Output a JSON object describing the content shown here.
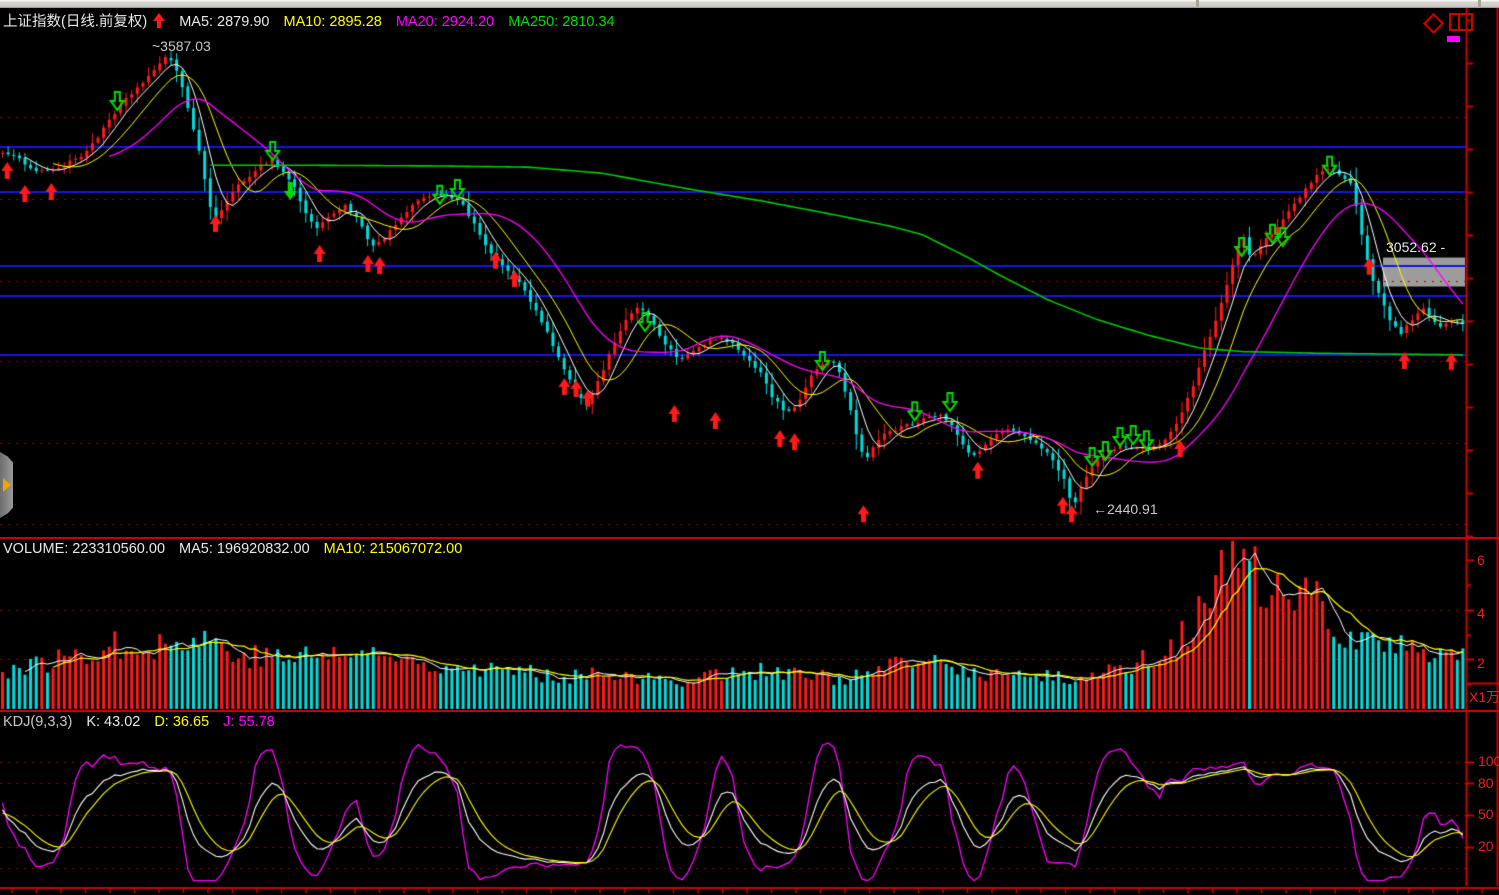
{
  "main": {
    "title": "上证指数(日线.前复权)",
    "ma5": "MA5: 2879.90",
    "ma10": "MA10: 2895.28",
    "ma20": "MA20: 2924.20",
    "ma250": "MA250: 2810.34",
    "high_label": "~3587.03",
    "low_label": "←2440.91",
    "price_tag": "3052.62 -"
  },
  "volume": {
    "volume": "VOLUME: 223310560.00",
    "ma5": "MA5: 196920832.00",
    "ma10": "MA10: 215067072.00",
    "axis": {
      "a6": "6",
      "a4": "4",
      "a2": "2"
    },
    "unit": "X1万"
  },
  "kdj": {
    "title": "KDJ(9,3,3)",
    "k": "K: 43.02",
    "d": "D: 36.65",
    "j": "J: 55.78",
    "axis": {
      "a100": "100",
      "a80": "80",
      "a50": "50",
      "a20": "20"
    }
  },
  "chart_data": {
    "type": "candlestick+volume+kdj",
    "n_candles": 261,
    "price_axis": {
      "min": 2380,
      "max": 3650
    },
    "support_lines": [
      3351,
      3237,
      3052.62,
      2976,
      2827
    ],
    "grid_lines": [
      3426,
      3220,
      3014,
      2812,
      2606,
      2402
    ],
    "price_tag_value": 3052.62,
    "close_anchors": [
      [
        0.0,
        3340
      ],
      [
        0.012,
        3315
      ],
      [
        0.026,
        3290
      ],
      [
        0.04,
        3300
      ],
      [
        0.055,
        3330
      ],
      [
        0.07,
        3400
      ],
      [
        0.085,
        3470
      ],
      [
        0.1,
        3530
      ],
      [
        0.113,
        3575
      ],
      [
        0.118,
        3560
      ],
      [
        0.125,
        3480
      ],
      [
        0.135,
        3330
      ],
      [
        0.144,
        3170
      ],
      [
        0.152,
        3200
      ],
      [
        0.163,
        3260
      ],
      [
        0.175,
        3300
      ],
      [
        0.184,
        3320
      ],
      [
        0.192,
        3290
      ],
      [
        0.2,
        3250
      ],
      [
        0.208,
        3180
      ],
      [
        0.216,
        3145
      ],
      [
        0.226,
        3185
      ],
      [
        0.235,
        3205
      ],
      [
        0.244,
        3165
      ],
      [
        0.252,
        3100
      ],
      [
        0.26,
        3110
      ],
      [
        0.27,
        3160
      ],
      [
        0.281,
        3200
      ],
      [
        0.292,
        3230
      ],
      [
        0.303,
        3235
      ],
      [
        0.313,
        3215
      ],
      [
        0.322,
        3160
      ],
      [
        0.332,
        3100
      ],
      [
        0.342,
        3050
      ],
      [
        0.352,
        3020
      ],
      [
        0.362,
        2960
      ],
      [
        0.372,
        2890
      ],
      [
        0.383,
        2800
      ],
      [
        0.393,
        2730
      ],
      [
        0.4,
        2700
      ],
      [
        0.408,
        2760
      ],
      [
        0.418,
        2850
      ],
      [
        0.428,
        2930
      ],
      [
        0.437,
        2950
      ],
      [
        0.446,
        2905
      ],
      [
        0.455,
        2850
      ],
      [
        0.463,
        2815
      ],
      [
        0.472,
        2835
      ],
      [
        0.482,
        2860
      ],
      [
        0.492,
        2870
      ],
      [
        0.501,
        2850
      ],
      [
        0.51,
        2820
      ],
      [
        0.519,
        2785
      ],
      [
        0.527,
        2725
      ],
      [
        0.536,
        2685
      ],
      [
        0.545,
        2705
      ],
      [
        0.553,
        2765
      ],
      [
        0.56,
        2805
      ],
      [
        0.567,
        2820
      ],
      [
        0.574,
        2780
      ],
      [
        0.58,
        2700
      ],
      [
        0.586,
        2610
      ],
      [
        0.591,
        2565
      ],
      [
        0.598,
        2605
      ],
      [
        0.606,
        2635
      ],
      [
        0.615,
        2645
      ],
      [
        0.624,
        2655
      ],
      [
        0.632,
        2675
      ],
      [
        0.641,
        2680
      ],
      [
        0.65,
        2650
      ],
      [
        0.657,
        2605
      ],
      [
        0.663,
        2570
      ],
      [
        0.671,
        2595
      ],
      [
        0.681,
        2625
      ],
      [
        0.691,
        2640
      ],
      [
        0.701,
        2625
      ],
      [
        0.711,
        2600
      ],
      [
        0.72,
        2560
      ],
      [
        0.728,
        2505
      ],
      [
        0.733,
        2445
      ],
      [
        0.74,
        2505
      ],
      [
        0.749,
        2560
      ],
      [
        0.758,
        2590
      ],
      [
        0.766,
        2600
      ],
      [
        0.774,
        2585
      ],
      [
        0.782,
        2592
      ],
      [
        0.791,
        2605
      ],
      [
        0.799,
        2625
      ],
      [
        0.807,
        2680
      ],
      [
        0.816,
        2760
      ],
      [
        0.825,
        2855
      ],
      [
        0.834,
        2955
      ],
      [
        0.843,
        3060
      ],
      [
        0.849,
        3130
      ],
      [
        0.855,
        3070
      ],
      [
        0.862,
        3100
      ],
      [
        0.871,
        3140
      ],
      [
        0.88,
        3185
      ],
      [
        0.89,
        3235
      ],
      [
        0.9,
        3275
      ],
      [
        0.908,
        3300
      ],
      [
        0.916,
        3280
      ],
      [
        0.924,
        3250
      ],
      [
        0.931,
        3120
      ],
      [
        0.938,
        3020
      ],
      [
        0.945,
        2960
      ],
      [
        0.951,
        2905
      ],
      [
        0.958,
        2880
      ],
      [
        0.965,
        2915
      ],
      [
        0.972,
        2945
      ],
      [
        0.979,
        2920
      ],
      [
        0.986,
        2900
      ],
      [
        0.993,
        2915
      ],
      [
        1.0,
        2905
      ]
    ],
    "ma250_anchors": [
      [
        0.138,
        3305
      ],
      [
        0.2,
        3305
      ],
      [
        0.3,
        3303
      ],
      [
        0.36,
        3300
      ],
      [
        0.41,
        3285
      ],
      [
        0.47,
        3245
      ],
      [
        0.52,
        3215
      ],
      [
        0.57,
        3180
      ],
      [
        0.61,
        3150
      ],
      [
        0.63,
        3130
      ],
      [
        0.66,
        3075
      ],
      [
        0.682,
        3030
      ],
      [
        0.716,
        2966
      ],
      [
        0.75,
        2916
      ],
      [
        0.784,
        2878
      ],
      [
        0.82,
        2845
      ],
      [
        0.85,
        2836
      ],
      [
        0.9,
        2832
      ],
      [
        0.95,
        2830
      ],
      [
        1.0,
        2828
      ]
    ],
    "volume_anchors": [
      [
        0.0,
        1.5
      ],
      [
        0.03,
        1.8
      ],
      [
        0.06,
        2.3
      ],
      [
        0.09,
        2.6
      ],
      [
        0.12,
        2.5
      ],
      [
        0.14,
        2.8
      ],
      [
        0.16,
        2.2
      ],
      [
        0.18,
        2.0
      ],
      [
        0.21,
        2.1
      ],
      [
        0.24,
        2.2
      ],
      [
        0.27,
        2.0
      ],
      [
        0.3,
        1.8
      ],
      [
        0.33,
        1.6
      ],
      [
        0.36,
        1.4
      ],
      [
        0.39,
        1.3
      ],
      [
        0.41,
        1.6
      ],
      [
        0.43,
        1.2
      ],
      [
        0.46,
        1.1
      ],
      [
        0.49,
        1.4
      ],
      [
        0.52,
        1.5
      ],
      [
        0.55,
        1.3
      ],
      [
        0.58,
        1.2
      ],
      [
        0.6,
        1.5
      ],
      [
        0.63,
        1.9
      ],
      [
        0.65,
        1.6
      ],
      [
        0.67,
        1.4
      ],
      [
        0.7,
        1.3
      ],
      [
        0.73,
        1.2
      ],
      [
        0.75,
        1.4
      ],
      [
        0.77,
        1.7
      ],
      [
        0.79,
        2.1
      ],
      [
        0.805,
        2.7
      ],
      [
        0.82,
        3.7
      ],
      [
        0.835,
        5.1
      ],
      [
        0.845,
        5.9
      ],
      [
        0.855,
        5.3
      ],
      [
        0.865,
        4.7
      ],
      [
        0.875,
        4.3
      ],
      [
        0.885,
        3.7
      ],
      [
        0.893,
        4.7
      ],
      [
        0.903,
        3.9
      ],
      [
        0.912,
        3.3
      ],
      [
        0.922,
        3.0
      ],
      [
        0.932,
        2.8
      ],
      [
        0.942,
        2.6
      ],
      [
        0.96,
        2.4
      ],
      [
        0.98,
        2.3
      ],
      [
        1.0,
        2.3
      ]
    ],
    "buy_markers": [
      [
        0.005,
        3313
      ],
      [
        0.017,
        3255
      ],
      [
        0.035,
        3260
      ],
      [
        0.147,
        3180
      ],
      [
        0.218,
        3104
      ],
      [
        0.251,
        3079
      ],
      [
        0.259,
        3074
      ],
      [
        0.338,
        3087
      ],
      [
        0.351,
        3041
      ],
      [
        0.385,
        2770
      ],
      [
        0.393,
        2765
      ],
      [
        0.401,
        2740
      ],
      [
        0.46,
        2702
      ],
      [
        0.488,
        2684
      ],
      [
        0.532,
        2639
      ],
      [
        0.542,
        2631
      ],
      [
        0.589,
        2450
      ],
      [
        0.667,
        2559
      ],
      [
        0.725,
        2471
      ],
      [
        0.731,
        2450
      ],
      [
        0.805,
        2614
      ],
      [
        0.934,
        3072
      ],
      [
        0.958,
        2835
      ],
      [
        0.99,
        2833
      ]
    ],
    "sell_markers": [
      [
        0.08,
        3489
      ],
      [
        0.186,
        3363
      ],
      [
        0.3,
        3253
      ],
      [
        0.312,
        3268
      ],
      [
        0.44,
        2933
      ],
      [
        0.561,
        2835
      ],
      [
        0.624,
        2709
      ],
      [
        0.648,
        2732
      ],
      [
        0.745,
        2594
      ],
      [
        0.754,
        2609
      ],
      [
        0.764,
        2644
      ],
      [
        0.773,
        2649
      ],
      [
        0.782,
        2636
      ],
      [
        0.847,
        3122
      ],
      [
        0.868,
        3155
      ],
      [
        0.875,
        3147
      ],
      [
        0.907,
        3326
      ]
    ],
    "sell_solid_markers": [
      [
        0.198,
        3263
      ]
    ],
    "volume_axis": {
      "gridline_values": [
        2,
        4
      ],
      "tick_values": [
        2,
        4,
        6
      ]
    },
    "kdj_axis": {
      "gridline_values": [
        100,
        80,
        50,
        20,
        0
      ],
      "tick_values": [
        100,
        80,
        50,
        20
      ]
    },
    "colors": {
      "bg": "#000000",
      "up": "#ff1a1a",
      "down": "#00dcdc",
      "ma5": "#ffffff",
      "ma10": "#ffff00",
      "ma20": "#ff00ff",
      "ma250": "#00cc00",
      "grid_dotted": "#a00000",
      "support_line": "#1414e6",
      "axis_red": "#cc0000",
      "label_red": "#ee1c1c",
      "tag_box": "#9c9c9c",
      "buy": "#ff1a1a",
      "sell": "#00dd00",
      "k": "#ffffff",
      "d": "#ffff00",
      "j": "#ff00ff",
      "vol_ma5": "#ffffff",
      "vol_ma10": "#ffff00"
    }
  }
}
